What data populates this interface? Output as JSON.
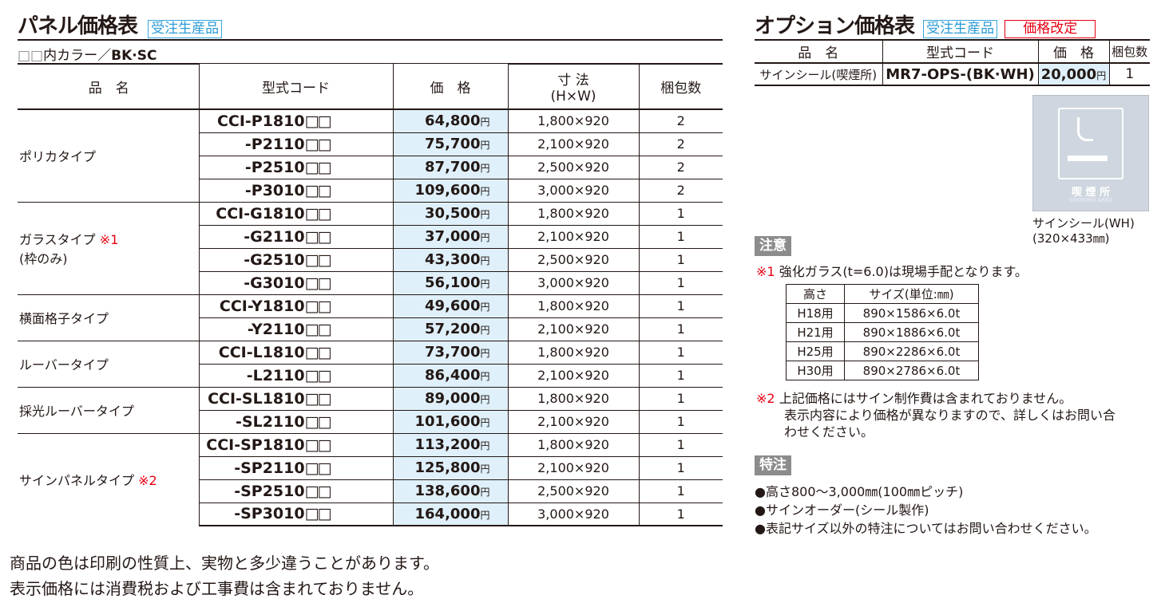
{
  "panel": {
    "title": "パネル価格表",
    "tag": "受注生産品",
    "color_note_prefix": "□□",
    "color_note": "内カラー／",
    "color_value": "BK·SC",
    "headers": {
      "name": "品　名",
      "code": "型式コード",
      "price": "価　格",
      "size": "寸 法",
      "size_sub": "(H×W)",
      "qty": "梱包数"
    },
    "yen": "円",
    "box": "□□",
    "groups": [
      {
        "name": "ポリカタイプ",
        "rows": [
          [
            "CCI-P1810",
            "64,800",
            "1,800×920",
            "2"
          ],
          [
            "-P2110",
            "75,700",
            "2,100×920",
            "2"
          ],
          [
            "-P2510",
            "87,700",
            "2,500×920",
            "2"
          ],
          [
            "-P3010",
            "109,600",
            "3,000×920",
            "2"
          ]
        ]
      },
      {
        "name": "ガラスタイプ",
        "mark": "※1",
        "sub": "(枠のみ)",
        "rows": [
          [
            "CCI-G1810",
            "30,500",
            "1,800×920",
            "1"
          ],
          [
            "-G2110",
            "37,000",
            "2,100×920",
            "1"
          ],
          [
            "-G2510",
            "43,300",
            "2,500×920",
            "1"
          ],
          [
            "-G3010",
            "56,100",
            "3,000×920",
            "1"
          ]
        ]
      },
      {
        "name": "横面格子タイプ",
        "rows": [
          [
            "CCI-Y1810",
            "49,600",
            "1,800×920",
            "1"
          ],
          [
            "-Y2110",
            "57,200",
            "2,100×920",
            "1"
          ]
        ]
      },
      {
        "name": "ルーバータイプ",
        "rows": [
          [
            "CCI-L1810",
            "73,700",
            "1,800×920",
            "1"
          ],
          [
            "-L2110",
            "86,400",
            "2,100×920",
            "1"
          ]
        ]
      },
      {
        "name": "採光ルーバータイプ",
        "rows": [
          [
            "CCI-SL1810",
            "89,000",
            "1,800×920",
            "1"
          ],
          [
            "-SL2110",
            "101,600",
            "2,100×920",
            "1"
          ]
        ]
      },
      {
        "name": "サインパネルタイプ",
        "mark": "※2",
        "rows": [
          [
            "CCI-SP1810",
            "113,200",
            "1,800×920",
            "1"
          ],
          [
            "-SP2110",
            "125,800",
            "2,100×920",
            "1"
          ],
          [
            "-SP2510",
            "138,600",
            "2,500×920",
            "1"
          ],
          [
            "-SP3010",
            "164,000",
            "3,000×920",
            "1"
          ]
        ]
      }
    ]
  },
  "footer": [
    "商品の色は印刷の性質上、実物と多少違うことがあります。",
    "表示価格には消費税および工事費は含まれておりません。"
  ],
  "option": {
    "title": "オプション価格表",
    "tag": "受注生産品",
    "tag2": "価格改定",
    "headers": {
      "name": "品　名",
      "code": "型式コード",
      "price": "価　格",
      "qty": "梱包数"
    },
    "row": {
      "name": "サインシール(喫煙所)",
      "code": "MR7-OPS-(BK·WH)",
      "price": "20,000",
      "yen": "円",
      "qty": "1"
    },
    "sign_text": "喫 煙 所",
    "sign_sub": "SMOKING AREA",
    "caption1": "サインシール(WH)",
    "caption2": "(320×433㎜)"
  },
  "notes": {
    "badge": "注意",
    "n1_mark": "※1",
    "n1": "強化ガラス(t=6.0)は現場手配となります。",
    "glass_headers": [
      "高さ",
      "サイズ(単位:㎜)"
    ],
    "glass": [
      [
        "H18用",
        "890×1586×6.0t"
      ],
      [
        "H21用",
        "890×1886×6.0t"
      ],
      [
        "H25用",
        "890×2286×6.0t"
      ],
      [
        "H30用",
        "890×2786×6.0t"
      ]
    ],
    "n2_mark": "※2",
    "n2a": "上記価格にはサイン制作費は含まれておりません。",
    "n2b": "表示内容により価格が異なりますので、詳しくはお問い合",
    "n2c": "わせください。"
  },
  "special": {
    "badge": "特注",
    "items": [
      "●高さ800～3,000㎜(100㎜ピッチ)",
      "●サインオーダー(シール製作)",
      "●表記サイズ以外の特注についてはお問い合わせください。"
    ]
  },
  "colors": {
    "price_bg": "#dff0fa",
    "tag_blue": "#2a9ad6",
    "tag_red": "#e60012",
    "badge": "#8c8c8c"
  }
}
